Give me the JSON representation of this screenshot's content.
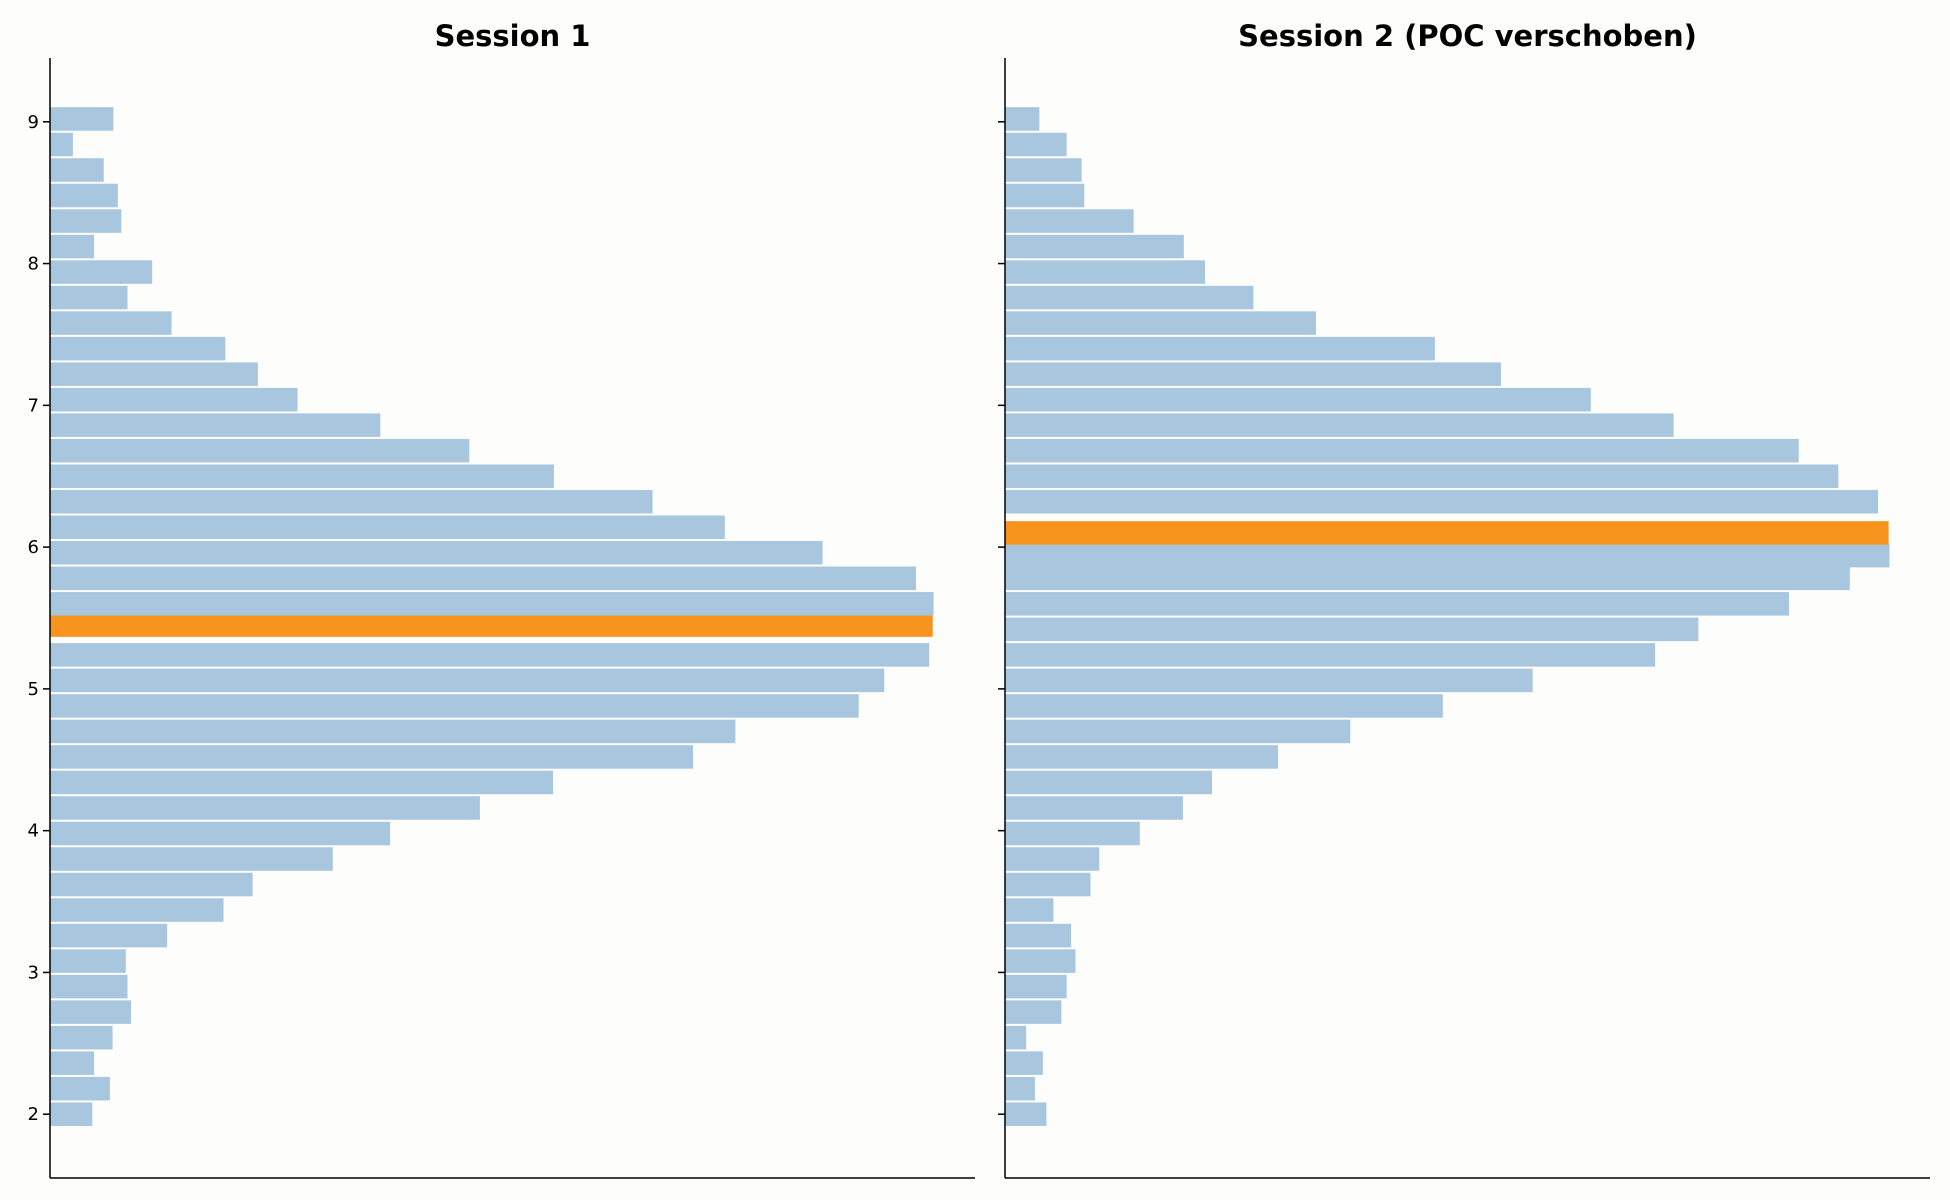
{
  "chart_data": [
    {
      "type": "bar",
      "orientation": "horizontal",
      "title": "Session 1",
      "xlabel": "",
      "ylabel": "",
      "ylim": [
        1.55,
        9.45
      ],
      "yticks": [
        2,
        3,
        4,
        5,
        6,
        7,
        8,
        9
      ],
      "xlim": [
        0,
        105
      ],
      "bin_width": 0.18,
      "bar_color": "#a9c6df",
      "highlight_color": "#f7941d",
      "highlight_bin": 5.45,
      "bins": [
        {
          "y": 2.0,
          "value": 4.8
        },
        {
          "y": 2.18,
          "value": 6.8
        },
        {
          "y": 2.36,
          "value": 5.0
        },
        {
          "y": 2.54,
          "value": 7.1
        },
        {
          "y": 2.72,
          "value": 9.2
        },
        {
          "y": 2.9,
          "value": 8.8
        },
        {
          "y": 3.08,
          "value": 8.6
        },
        {
          "y": 3.26,
          "value": 13.3
        },
        {
          "y": 3.44,
          "value": 19.7
        },
        {
          "y": 3.62,
          "value": 23.0
        },
        {
          "y": 3.8,
          "value": 32.1
        },
        {
          "y": 3.98,
          "value": 38.6
        },
        {
          "y": 4.16,
          "value": 48.8
        },
        {
          "y": 4.34,
          "value": 57.1
        },
        {
          "y": 4.52,
          "value": 73.0
        },
        {
          "y": 4.7,
          "value": 77.8
        },
        {
          "y": 4.88,
          "value": 91.8
        },
        {
          "y": 5.06,
          "value": 94.7
        },
        {
          "y": 5.24,
          "value": 99.8
        },
        {
          "y": 5.45,
          "value": 100.2
        },
        {
          "y": 5.6,
          "value": 100.3
        },
        {
          "y": 5.78,
          "value": 98.3
        },
        {
          "y": 5.96,
          "value": 87.7
        },
        {
          "y": 6.14,
          "value": 76.6
        },
        {
          "y": 6.32,
          "value": 68.4
        },
        {
          "y": 6.5,
          "value": 57.2
        },
        {
          "y": 6.68,
          "value": 47.6
        },
        {
          "y": 6.86,
          "value": 37.5
        },
        {
          "y": 7.04,
          "value": 28.1
        },
        {
          "y": 7.22,
          "value": 23.6
        },
        {
          "y": 7.4,
          "value": 19.9
        },
        {
          "y": 7.58,
          "value": 13.8
        },
        {
          "y": 7.76,
          "value": 8.8
        },
        {
          "y": 7.94,
          "value": 11.6
        },
        {
          "y": 8.12,
          "value": 5.0
        },
        {
          "y": 8.3,
          "value": 8.1
        },
        {
          "y": 8.48,
          "value": 7.7
        },
        {
          "y": 8.66,
          "value": 6.1
        },
        {
          "y": 8.84,
          "value": 2.6
        },
        {
          "y": 9.02,
          "value": 7.2
        }
      ]
    },
    {
      "type": "bar",
      "orientation": "horizontal",
      "title": "Session 2 (POC verschoben)",
      "xlabel": "",
      "ylabel": "",
      "ylim": [
        1.55,
        9.45
      ],
      "yticks": [
        2,
        3,
        4,
        5,
        6,
        7,
        8,
        9
      ],
      "xlim": [
        0,
        105
      ],
      "bin_width": 0.18,
      "bar_color": "#a9c6df",
      "highlight_color": "#f7941d",
      "highlight_bin": 6.1,
      "bins": [
        {
          "y": 2.0,
          "value": 4.7
        },
        {
          "y": 2.18,
          "value": 3.4
        },
        {
          "y": 2.36,
          "value": 4.3
        },
        {
          "y": 2.54,
          "value": 2.4
        },
        {
          "y": 2.72,
          "value": 6.4
        },
        {
          "y": 2.9,
          "value": 7.0
        },
        {
          "y": 3.08,
          "value": 8.0
        },
        {
          "y": 3.26,
          "value": 7.5
        },
        {
          "y": 3.44,
          "value": 5.5
        },
        {
          "y": 3.62,
          "value": 9.7
        },
        {
          "y": 3.8,
          "value": 10.7
        },
        {
          "y": 3.98,
          "value": 15.3
        },
        {
          "y": 4.16,
          "value": 20.2
        },
        {
          "y": 4.34,
          "value": 23.5
        },
        {
          "y": 4.52,
          "value": 31.0
        },
        {
          "y": 4.7,
          "value": 39.2
        },
        {
          "y": 4.88,
          "value": 49.7
        },
        {
          "y": 5.06,
          "value": 59.9
        },
        {
          "y": 5.24,
          "value": 73.8
        },
        {
          "y": 5.42,
          "value": 78.7
        },
        {
          "y": 5.6,
          "value": 89.0
        },
        {
          "y": 5.78,
          "value": 95.9
        },
        {
          "y": 5.94,
          "value": 100.4
        },
        {
          "y": 6.1,
          "value": 100.3
        },
        {
          "y": 6.32,
          "value": 99.1
        },
        {
          "y": 6.5,
          "value": 94.6
        },
        {
          "y": 6.68,
          "value": 90.1
        },
        {
          "y": 6.86,
          "value": 75.9
        },
        {
          "y": 7.04,
          "value": 66.5
        },
        {
          "y": 7.22,
          "value": 56.3
        },
        {
          "y": 7.4,
          "value": 48.8
        },
        {
          "y": 7.58,
          "value": 35.3
        },
        {
          "y": 7.76,
          "value": 28.2
        },
        {
          "y": 7.94,
          "value": 22.7
        },
        {
          "y": 8.12,
          "value": 20.3
        },
        {
          "y": 8.3,
          "value": 14.6
        },
        {
          "y": 8.48,
          "value": 9.0
        },
        {
          "y": 8.66,
          "value": 8.7
        },
        {
          "y": 8.84,
          "value": 7.0
        },
        {
          "y": 9.02,
          "value": 3.9
        }
      ]
    }
  ]
}
